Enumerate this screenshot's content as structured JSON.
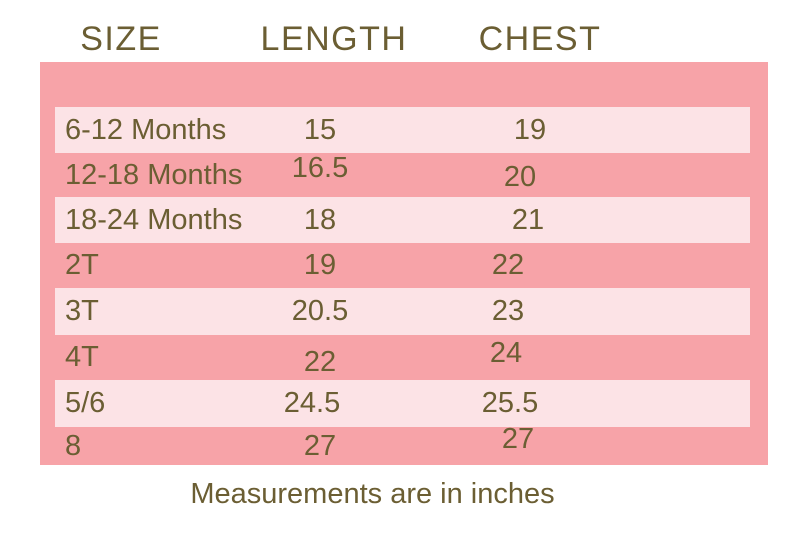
{
  "chart_data": {
    "type": "table",
    "columns": [
      "SIZE",
      "LENGTH",
      "CHEST"
    ],
    "rows": [
      [
        "6-12 Months",
        15,
        19
      ],
      [
        "12-18 Months",
        16.5,
        20
      ],
      [
        "18-24 Months",
        18,
        21
      ],
      [
        "2T",
        19,
        22
      ],
      [
        "3T",
        20.5,
        23
      ],
      [
        "4T",
        22,
        24
      ],
      [
        "5/6",
        24.5,
        25.5
      ],
      [
        "8",
        27,
        27
      ]
    ],
    "note": "Measurements are in inches",
    "units": "inches",
    "layout_hints": "striped rows alternating dark/light pink; light rows inset; no gridlines"
  },
  "colors": {
    "row_dark": "#F7A3A8",
    "row_light": "#FCE3E6",
    "text_olive": "#6B5E33",
    "page_background": "#FFFFFF"
  },
  "footer": {
    "note": "Measurements are in inches"
  }
}
